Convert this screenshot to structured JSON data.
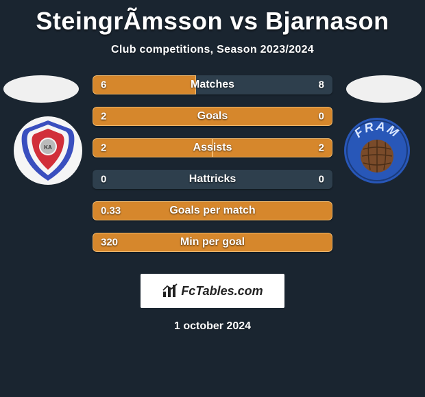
{
  "title": {
    "player_left": "SteingrÃmsson",
    "vs": "vs",
    "player_right": "Bjarnason"
  },
  "subtitle": "Club competitions, Season 2023/2024",
  "colors": {
    "page_bg": "#1a2530",
    "bar_bg": "#2e3f4d",
    "bar_fill": "#d6872c",
    "bar_border": "#f0b86c",
    "text": "#ffffff"
  },
  "bars": [
    {
      "label": "Matches",
      "left_val": "6",
      "right_val": "8",
      "left_pct": 43,
      "right_pct": 0,
      "left_only": true
    },
    {
      "label": "Goals",
      "left_val": "2",
      "right_val": "0",
      "left_pct": 100,
      "right_pct": 0,
      "full": true
    },
    {
      "label": "Assists",
      "left_val": "2",
      "right_val": "2",
      "left_pct": 50,
      "right_pct": 50,
      "split": true
    },
    {
      "label": "Hattricks",
      "left_val": "0",
      "right_val": "0",
      "left_pct": 0,
      "right_pct": 0,
      "none": true
    },
    {
      "label": "Goals per match",
      "left_val": "0.33",
      "right_val": "",
      "left_pct": 100,
      "right_pct": 0,
      "full": true
    },
    {
      "label": "Min per goal",
      "left_val": "320",
      "right_val": "",
      "left_pct": 100,
      "right_pct": 0,
      "full": true
    }
  ],
  "badges": {
    "left": {
      "outer": "#f5f5f5",
      "ring": "#3a4fbf",
      "inner": "#d12f3a"
    },
    "right": {
      "outer": "#2857b8",
      "ball": "#7a4b2a",
      "text": "FRAM",
      "text_color": "#d9e6ff"
    }
  },
  "watermark": "FcTables.com",
  "date": "1 october 2024"
}
